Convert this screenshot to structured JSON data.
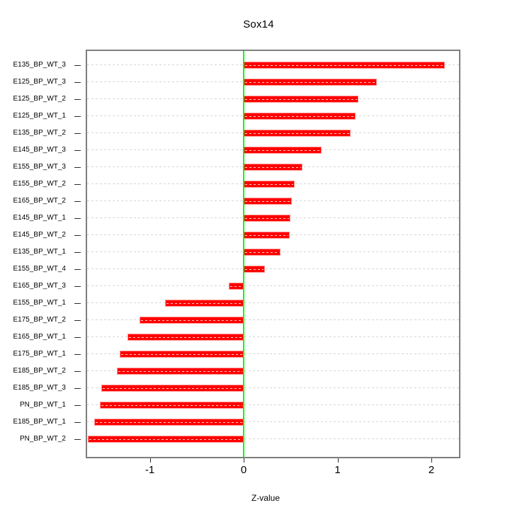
{
  "chart_data": {
    "type": "bar",
    "orientation": "horizontal",
    "title": "Sox14",
    "xlabel": "Z-value",
    "categories": [
      "E135_BP_WT_3",
      "E125_BP_WT_3",
      "E125_BP_WT_2",
      "E125_BP_WT_1",
      "E135_BP_WT_2",
      "E145_BP_WT_3",
      "E155_BP_WT_3",
      "E155_BP_WT_2",
      "E165_BP_WT_2",
      "E145_BP_WT_1",
      "E145_BP_WT_2",
      "E135_BP_WT_1",
      "E155_BP_WT_4",
      "E165_BP_WT_3",
      "E155_BP_WT_1",
      "E175_BP_WT_2",
      "E165_BP_WT_1",
      "E175_BP_WT_1",
      "E185_BP_WT_2",
      "E185_BP_WT_3",
      "PN_BP_WT_1",
      "E185_BP_WT_1",
      "PN_BP_WT_2"
    ],
    "values": [
      2.14,
      1.42,
      1.22,
      1.19,
      1.14,
      0.83,
      0.63,
      0.54,
      0.51,
      0.5,
      0.49,
      0.39,
      0.23,
      -0.16,
      -0.84,
      -1.11,
      -1.24,
      -1.32,
      -1.35,
      -1.52,
      -1.53,
      -1.59,
      -1.66
    ],
    "xticks": [
      -1,
      0,
      1,
      2
    ],
    "xlim": [
      -1.67,
      2.29
    ],
    "grid": "dashed-horizontal-per-row",
    "legend": null,
    "colors": {
      "bar": "#ff0000",
      "bar_edge": "#ff9393",
      "bar_inner_dash": "rgba(255,255,255,0.8)",
      "zero_line": "#00ff00",
      "gridline": "#d4d4d4",
      "box_border": "#7e7e7e",
      "tick": "#2e2e2e",
      "text": "#000000",
      "background": "#ffffff"
    }
  }
}
